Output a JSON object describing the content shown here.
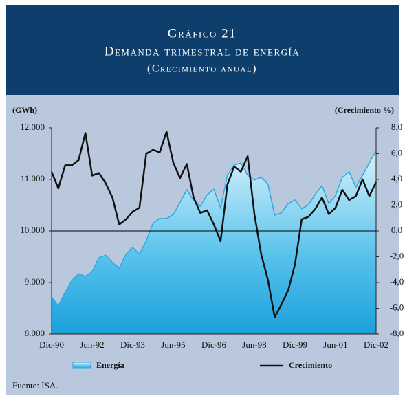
{
  "chart_data": {
    "type": "area-line",
    "title": "Gráfico 21",
    "subtitle": "Demanda trimestral de energía",
    "subtitle2": "(Crecimiento anual)",
    "y_label": "(GWh)",
    "y2_label": "(Crecimiento %)",
    "source": "Fuente: ISA.",
    "categories": [
      "Dic-90",
      null,
      null,
      null,
      null,
      null,
      "Jun-92",
      null,
      null,
      null,
      null,
      null,
      "Dic-93",
      null,
      null,
      null,
      null,
      null,
      "Jun-95",
      null,
      null,
      null,
      null,
      null,
      "Dic-96",
      null,
      null,
      null,
      null,
      null,
      "Jun-98",
      null,
      null,
      null,
      null,
      null,
      "Dic-99",
      null,
      null,
      null,
      null,
      null,
      "Jun-01",
      null,
      null,
      null,
      null,
      null,
      "Dic-02"
    ],
    "series": [
      {
        "name": "Energía",
        "color": "#29abe2",
        "axis": "y",
        "values": [
          8720,
          8550,
          8810,
          9040,
          9170,
          9120,
          9210,
          9480,
          9530,
          9390,
          9280,
          9550,
          9680,
          9550,
          9810,
          10150,
          10240,
          10240,
          10320,
          10550,
          10800,
          10590,
          10480,
          10700,
          10810,
          10450,
          11080,
          11280,
          11320,
          11080,
          10990,
          11040,
          10910,
          10310,
          10350,
          10530,
          10600,
          10430,
          10510,
          10710,
          10880,
          10530,
          10690,
          11040,
          11150,
          10850,
          11080,
          11320,
          11550
        ]
      },
      {
        "name": "Crecimiento",
        "color": "#111111",
        "axis": "y2",
        "values": [
          4.6,
          3.3,
          5.1,
          5.1,
          5.5,
          7.6,
          4.3,
          4.5,
          3.7,
          2.6,
          0.5,
          0.9,
          1.5,
          1.8,
          6.0,
          6.3,
          6.1,
          7.7,
          5.3,
          4.1,
          5.2,
          2.6,
          1.4,
          1.6,
          0.5,
          -0.8,
          3.6,
          5.0,
          4.6,
          5.8,
          1.3,
          -1.8,
          -3.8,
          -6.7,
          -5.7,
          -4.6,
          -2.6,
          0.9,
          1.1,
          1.7,
          2.6,
          1.3,
          1.8,
          3.2,
          2.4,
          2.7,
          4.0,
          2.7,
          3.8
        ]
      }
    ],
    "ylim": [
      8000,
      12000
    ],
    "yticks": [
      {
        "value": 8000,
        "label": "8.000"
      },
      {
        "value": 9000,
        "label": "9.000"
      },
      {
        "value": 10000,
        "label": "10.000"
      },
      {
        "value": 11000,
        "label": "11.000"
      },
      {
        "value": 12000,
        "label": "12.000"
      }
    ],
    "y2lim": [
      -8,
      8
    ],
    "y2ticks": [
      {
        "value": -8,
        "label": "-8,0"
      },
      {
        "value": -6,
        "label": "-6,0"
      },
      {
        "value": -4,
        "label": "-4,0"
      },
      {
        "value": -2,
        "label": "-2,0"
      },
      {
        "value": 0,
        "label": "0,0"
      },
      {
        "value": 2,
        "label": "2,0"
      },
      {
        "value": 4,
        "label": "4,0"
      },
      {
        "value": 6,
        "label": "6,0"
      },
      {
        "value": 8,
        "label": "8,0"
      }
    ]
  }
}
